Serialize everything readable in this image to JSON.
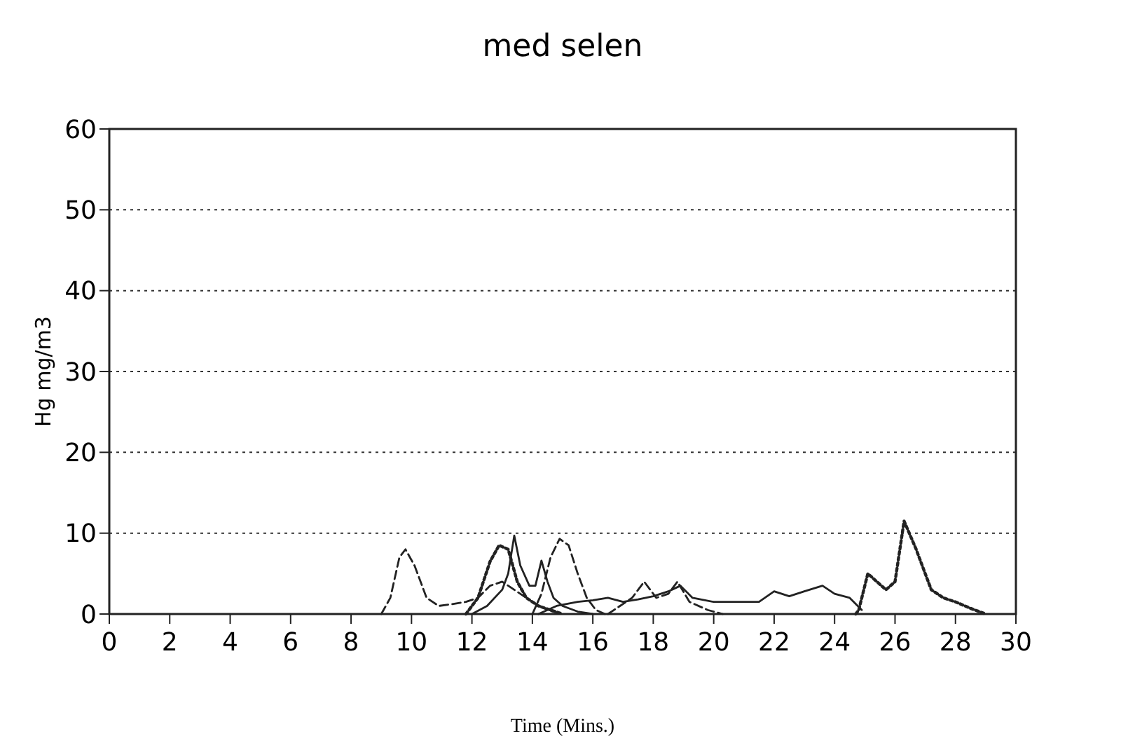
{
  "chart_data": {
    "type": "line",
    "title": "med selen",
    "xlabel": "Time (Mins.)",
    "ylabel": "Hg mg/m3",
    "xlim": [
      0,
      30
    ],
    "ylim": [
      0,
      60
    ],
    "xticks": [
      0,
      2,
      4,
      6,
      8,
      10,
      12,
      14,
      16,
      18,
      20,
      22,
      24,
      26,
      28,
      30
    ],
    "yticks": [
      0,
      10,
      20,
      30,
      40,
      50,
      60
    ],
    "grid": "y",
    "series": [
      {
        "color": "#222222",
        "line_style": "dashed",
        "x": [
          9.0,
          9.3,
          9.6,
          9.8,
          10.1,
          10.5,
          10.9,
          11.3,
          11.8,
          12.2,
          12.6,
          13.0,
          13.4,
          14.0,
          14.5,
          15.0
        ],
        "values": [
          0,
          2,
          7,
          8,
          6,
          2,
          1,
          1.2,
          1.5,
          2,
          3.5,
          4,
          3,
          1.5,
          0.5,
          0
        ]
      },
      {
        "color": "#222222",
        "line_style": "dotted",
        "x": [
          11.8,
          12.2,
          12.6,
          12.9,
          13.2,
          13.5,
          13.8,
          14.2,
          14.6,
          15.0
        ],
        "values": [
          0,
          2,
          6.5,
          8.5,
          8,
          4,
          2,
          1,
          0.5,
          0
        ]
      },
      {
        "color": "#222222",
        "line_style": "solid",
        "x": [
          12.0,
          12.5,
          13.0,
          13.2,
          13.4,
          13.6,
          13.9,
          14.1,
          14.3,
          14.5,
          14.7,
          15.0,
          15.5,
          16.0
        ],
        "values": [
          0,
          1,
          3,
          5,
          9.7,
          6,
          3.5,
          3.5,
          6.6,
          4,
          2,
          1,
          0.3,
          0
        ]
      },
      {
        "color": "#222222",
        "line_style": "dashed",
        "x": [
          14.0,
          14.3,
          14.6,
          14.9,
          15.2,
          15.5,
          15.8,
          16.1,
          16.4
        ],
        "values": [
          0,
          2.5,
          7,
          9.3,
          8.5,
          5,
          2,
          0.5,
          0
        ]
      },
      {
        "color": "#222222",
        "line_style": "solid",
        "x": [
          14.2,
          14.8,
          15.5,
          16.0,
          16.5,
          17.0,
          17.5,
          18.0,
          18.5,
          18.9,
          19.3,
          20.0,
          21.0,
          21.5,
          22.0,
          22.5,
          23.0,
          23.6,
          24.0,
          24.5,
          24.9
        ],
        "values": [
          0,
          1,
          1.5,
          1.7,
          2,
          1.5,
          1.8,
          2.2,
          2.8,
          3.5,
          2,
          1.5,
          1.5,
          1.5,
          2.8,
          2.2,
          2.8,
          3.5,
          2.5,
          2,
          0.5
        ]
      },
      {
        "color": "#222222",
        "line_style": "dashed",
        "x": [
          16.5,
          17.3,
          17.7,
          18.1,
          18.5,
          18.8,
          19.2,
          19.8,
          20.3
        ],
        "values": [
          0,
          2,
          4,
          2,
          2.5,
          4,
          1.5,
          0.5,
          0
        ]
      },
      {
        "color": "#222222",
        "line_style": "dotted",
        "x": [
          24.7,
          24.8,
          25.1,
          25.4,
          25.7,
          26.0,
          26.3,
          26.7,
          27.2,
          27.6,
          28.0,
          28.5,
          29.0
        ],
        "values": [
          0,
          0.5,
          5,
          4,
          3,
          4,
          11.5,
          8,
          3,
          2,
          1.5,
          0.7,
          0
        ]
      }
    ]
  }
}
